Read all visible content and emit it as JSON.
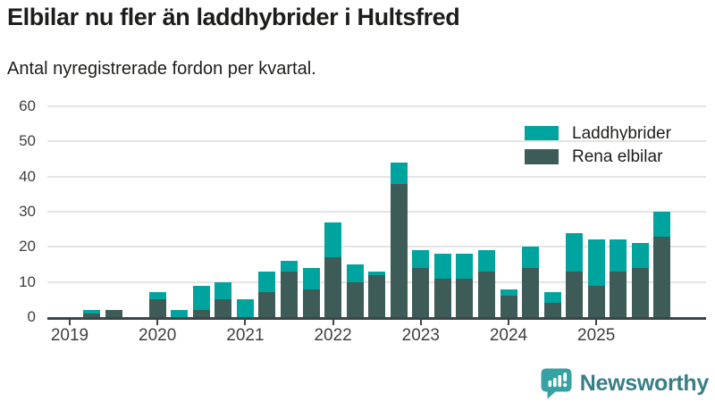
{
  "chart_data": {
    "type": "bar",
    "stacked": true,
    "title": "Elbilar nu fler än laddhybrider i Hultsfred",
    "subtitle": "Antal nyregistrerade fordon per kvartal.",
    "categories": [
      "2019 Q1",
      "2019 Q2",
      "2019 Q3",
      "2019 Q4",
      "2020 Q1",
      "2020 Q2",
      "2020 Q3",
      "2020 Q4",
      "2021 Q1",
      "2021 Q2",
      "2021 Q3",
      "2021 Q4",
      "2022 Q1",
      "2022 Q2",
      "2022 Q3",
      "2022 Q4",
      "2023 Q1",
      "2023 Q2",
      "2023 Q3",
      "2023 Q4",
      "2024 Q1",
      "2024 Q2",
      "2024 Q3",
      "2024 Q4",
      "2025 Q1",
      "2025 Q2",
      "2025 Q3",
      "2025 Q4"
    ],
    "series": [
      {
        "name": "Laddhybrider",
        "color": "#00a49e",
        "stack_position": "top",
        "values": [
          0,
          1,
          0,
          0,
          2,
          2,
          7,
          5,
          5,
          6,
          3,
          6,
          10,
          5,
          1,
          6,
          5,
          7,
          7,
          6,
          2,
          6,
          3,
          11,
          13,
          9,
          7,
          7
        ]
      },
      {
        "name": "Rena elbilar",
        "color": "#3d5b57",
        "stack_position": "bottom",
        "values": [
          0,
          1,
          2,
          0,
          5,
          0,
          2,
          5,
          0,
          7,
          13,
          8,
          17,
          10,
          12,
          38,
          14,
          11,
          11,
          13,
          6,
          14,
          4,
          13,
          9,
          13,
          14,
          23
        ]
      }
    ],
    "x_year_ticks": [
      "2019",
      "2020",
      "2021",
      "2022",
      "2023",
      "2024",
      "2025"
    ],
    "ylim": [
      0,
      60
    ],
    "yticks": [
      0,
      10,
      20,
      30,
      40,
      50,
      60
    ],
    "grid": true,
    "legend_position": "top-right",
    "colors": {
      "axis": "#3b4547",
      "gridline": "#e4e4e4",
      "tick_text": "#3f3f3f",
      "text": "#1d1d1b"
    }
  },
  "brand": {
    "name": "Newsworthy",
    "icon_color": "#38a1a3",
    "text_color": "#377f86"
  }
}
